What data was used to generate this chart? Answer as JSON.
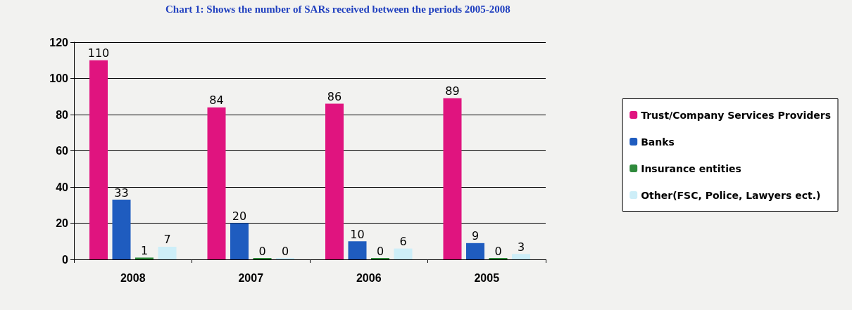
{
  "chart_data": {
    "type": "bar",
    "title": "Chart 1: Shows the number of SARs received between the periods 2005-2008",
    "categories": [
      "2008",
      "2007",
      "2006",
      "2005"
    ],
    "series": [
      {
        "name": "Trust/Company Services Providers",
        "color": "#e0147f",
        "values": [
          110,
          84,
          86,
          89
        ]
      },
      {
        "name": "Banks",
        "color": "#1f5cbf",
        "values": [
          33,
          20,
          10,
          9
        ]
      },
      {
        "name": "Insurance entities",
        "color": "#2f8a3c",
        "values": [
          1,
          0,
          0,
          0
        ]
      },
      {
        "name": "Other(FSC, Police, Lawyers ect.)",
        "color": "#cdeef8",
        "values": [
          7,
          0,
          6,
          3
        ]
      }
    ],
    "ylim": [
      0,
      120
    ],
    "yticks": [
      0,
      20,
      40,
      60,
      80,
      100,
      120
    ],
    "grid": "y",
    "legend": "right",
    "data_labels": true
  }
}
